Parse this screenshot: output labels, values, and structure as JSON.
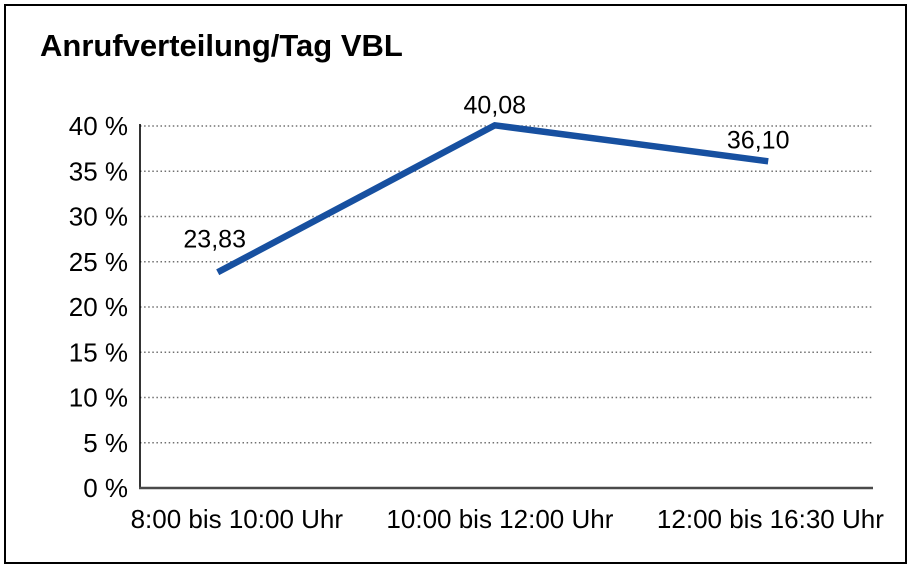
{
  "title": "Anrufverteilung/Tag VBL",
  "chart_data": {
    "type": "line",
    "title": "Anrufverteilung/Tag VBL",
    "categories": [
      "8:00 bis 10:00 Uhr",
      "10:00 bis 12:00 Uhr",
      "12:00 bis 16:30 Uhr"
    ],
    "values": [
      23.83,
      40.08,
      36.1
    ],
    "data_labels": [
      "23,83",
      "40,08",
      "36,10"
    ],
    "xlabel": "",
    "ylabel": "",
    "ylim": [
      0,
      40
    ],
    "y_ticks": [
      0,
      5,
      10,
      15,
      20,
      25,
      30,
      35,
      40
    ],
    "y_tick_labels": [
      "0 %",
      "5 %",
      "10 %",
      "15 %",
      "20 %",
      "25 %",
      "30 %",
      "35 %",
      "40 %"
    ],
    "grid": "horizontal dotted",
    "legend_position": "none",
    "line_color": "#1750A0"
  },
  "colors": {
    "line": "#1750A0",
    "grid_dots": "#707070",
    "y_axis": "#000000",
    "baseline": "#4a4a4a",
    "frame_border": "#000000",
    "text": "#000000",
    "background": "#ffffff"
  }
}
